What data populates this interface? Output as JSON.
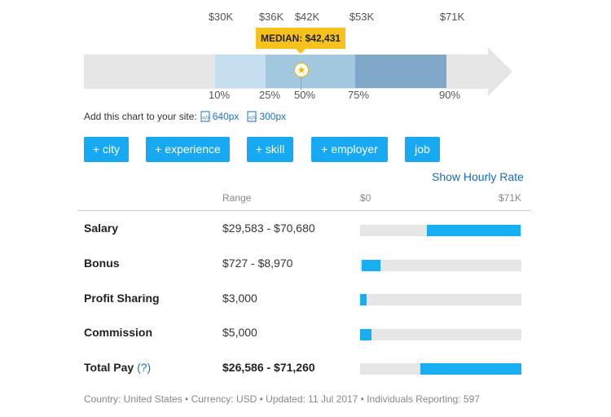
{
  "chart": {
    "top_labels": [
      "$30K",
      "$36K",
      "$42K",
      "$53K",
      "$71K"
    ],
    "bottom_labels": [
      "10%",
      "25%",
      "50%",
      "75%",
      "90%"
    ],
    "median_label": "MEDIAN: $42,431",
    "colors": {
      "band_outer": "#c5dff0",
      "band_mid": "#a3c7df",
      "band_inner": "#7ea7c8",
      "track": "#e6e6e6",
      "median": "#f7c21c"
    }
  },
  "embed": {
    "text": "Add this chart to your site:",
    "links": [
      "640px",
      "300px"
    ]
  },
  "filters": [
    "+ city",
    "+ experience",
    "+ skill",
    "+ employer",
    "job"
  ],
  "hourly_link": "Show Hourly Rate",
  "table": {
    "headers": {
      "range": "Range",
      "min": "$0",
      "max": "$71K"
    },
    "rows": [
      {
        "label": "Salary",
        "range": "$29,583 - $70,680",
        "bar": [
          0.416,
          0.995
        ]
      },
      {
        "label": "Bonus",
        "range": "$727 - $8,970",
        "bar": [
          0.01,
          0.126
        ]
      },
      {
        "label": "Profit Sharing",
        "range": "$3,000",
        "bar": [
          0.0,
          0.042
        ]
      },
      {
        "label": "Commission",
        "range": "$5,000",
        "bar": [
          0.0,
          0.07
        ]
      },
      {
        "label": "Total Pay",
        "help": "(?)",
        "range": "$26,586 - $71,260",
        "bar": [
          0.374,
          1.0
        ]
      }
    ],
    "bar_color": "#17aef2"
  },
  "footer": "Country: United States • Currency: USD • Updated: 11 Jul 2017 • Individuals Reporting: 597"
}
